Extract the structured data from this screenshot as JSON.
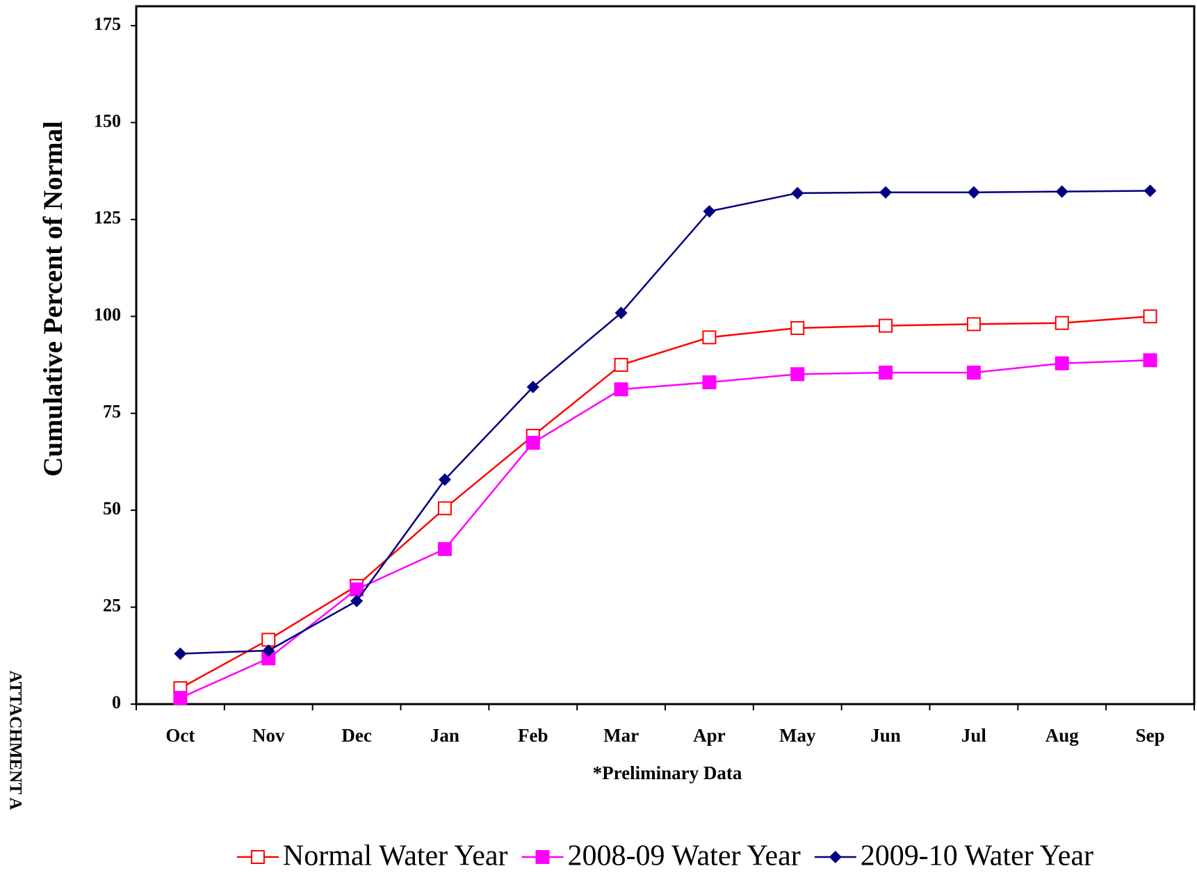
{
  "chart_data": {
    "type": "line",
    "y_label": "Cumulative Percent of Normal",
    "x_note": "*Preliminary Data",
    "side_note": "ATTACHMENT A",
    "categories": [
      "Oct",
      "Nov",
      "Dec",
      "Jan",
      "Feb",
      "Mar",
      "Apr",
      "May",
      "Jun",
      "Jul",
      "Aug",
      "Sep"
    ],
    "series": [
      {
        "name": "Normal Water Year",
        "color": "#ff0000",
        "marker": "square-open",
        "values": [
          4.1,
          16.6,
          30.5,
          50.5,
          69.2,
          87.5,
          94.6,
          97,
          97.6,
          98,
          98.3,
          100
        ]
      },
      {
        "name": "2008-09 Water Year",
        "color": "#ff00ff",
        "marker": "square",
        "values": [
          1.6,
          11.8,
          29.6,
          40,
          67.4,
          81.2,
          83,
          85.1,
          85.5,
          85.5,
          87.9,
          88.7
        ]
      },
      {
        "name": "2009-10 Water Year",
        "color": "#000080",
        "marker": "diamond",
        "values": [
          13,
          13.8,
          26.6,
          57.9,
          81.8,
          100.9,
          127.1,
          131.8,
          132,
          132,
          132.2,
          132.4
        ]
      }
    ],
    "ylim": [
      0,
      180
    ],
    "yticks": [
      0,
      25,
      50,
      75,
      100,
      125,
      150,
      175
    ],
    "grid": false,
    "legend": "bottom"
  }
}
